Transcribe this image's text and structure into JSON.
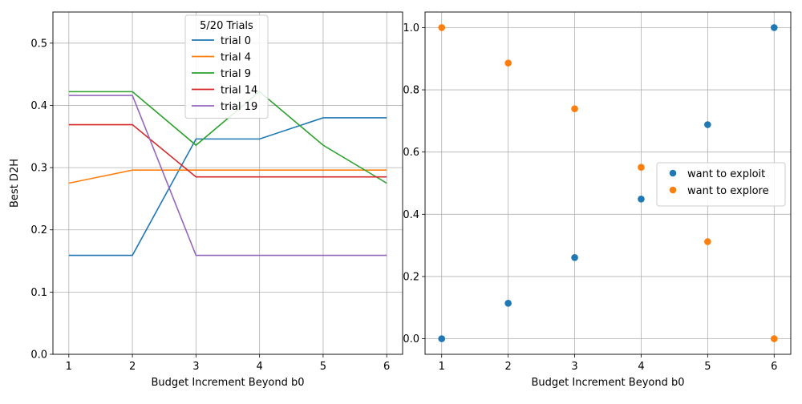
{
  "chart_data": [
    {
      "type": "line",
      "xlabel": "Budget Increment Beyond b0",
      "ylabel": "Best D2H",
      "xlim": [
        0.75,
        6.25
      ],
      "ylim": [
        0,
        0.55
      ],
      "x": [
        1,
        2,
        3,
        4,
        5,
        6
      ],
      "xticks": [
        "1",
        "2",
        "3",
        "4",
        "5",
        "6"
      ],
      "yticks": [
        "0.0",
        "0.1",
        "0.2",
        "0.3",
        "0.4",
        "0.5"
      ],
      "grid": true,
      "legend": {
        "title": "5/20 Trials",
        "placement": "upper-center"
      },
      "series": [
        {
          "name": "trial 0",
          "color": "#1f77b4",
          "values": [
            0.159,
            0.159,
            0.346,
            0.346,
            0.38,
            0.38
          ]
        },
        {
          "name": "trial 4",
          "color": "#ff7f0e",
          "values": [
            0.275,
            0.296,
            0.296,
            0.296,
            0.296,
            0.296
          ]
        },
        {
          "name": "trial 9",
          "color": "#2ca02c",
          "values": [
            0.422,
            0.422,
            0.336,
            0.422,
            0.336,
            0.275
          ]
        },
        {
          "name": "trial 14",
          "color": "#d62728",
          "values": [
            0.369,
            0.369,
            0.285,
            0.285,
            0.285,
            0.285
          ]
        },
        {
          "name": "trial 19",
          "color": "#9467bd",
          "values": [
            0.416,
            0.416,
            0.159,
            0.159,
            0.159,
            0.159
          ]
        }
      ]
    },
    {
      "type": "scatter",
      "xlabel": "Budget Increment Beyond b0",
      "ylabel": "",
      "xlim": [
        0.75,
        6.25
      ],
      "ylim": [
        -0.05,
        1.05
      ],
      "xticks": [
        "1",
        "2",
        "3",
        "4",
        "5",
        "6"
      ],
      "yticks": [
        "0.0",
        "0.2",
        "0.4",
        "0.6",
        "0.8",
        "1.0"
      ],
      "grid": true,
      "legend": {
        "title": "",
        "placement": "center-right"
      },
      "series": [
        {
          "name": "want to exploit",
          "color": "#1f77b4",
          "points": [
            [
              1,
              0.0
            ],
            [
              2,
              0.114
            ],
            [
              3,
              0.261
            ],
            [
              4,
              0.449
            ],
            [
              5,
              0.688
            ],
            [
              6,
              1.0
            ]
          ]
        },
        {
          "name": "want to explore",
          "color": "#ff7f0e",
          "points": [
            [
              1,
              1.0
            ],
            [
              2,
              0.886
            ],
            [
              3,
              0.739
            ],
            [
              4,
              0.551
            ],
            [
              5,
              0.312
            ],
            [
              6,
              0.0
            ]
          ]
        }
      ]
    }
  ]
}
